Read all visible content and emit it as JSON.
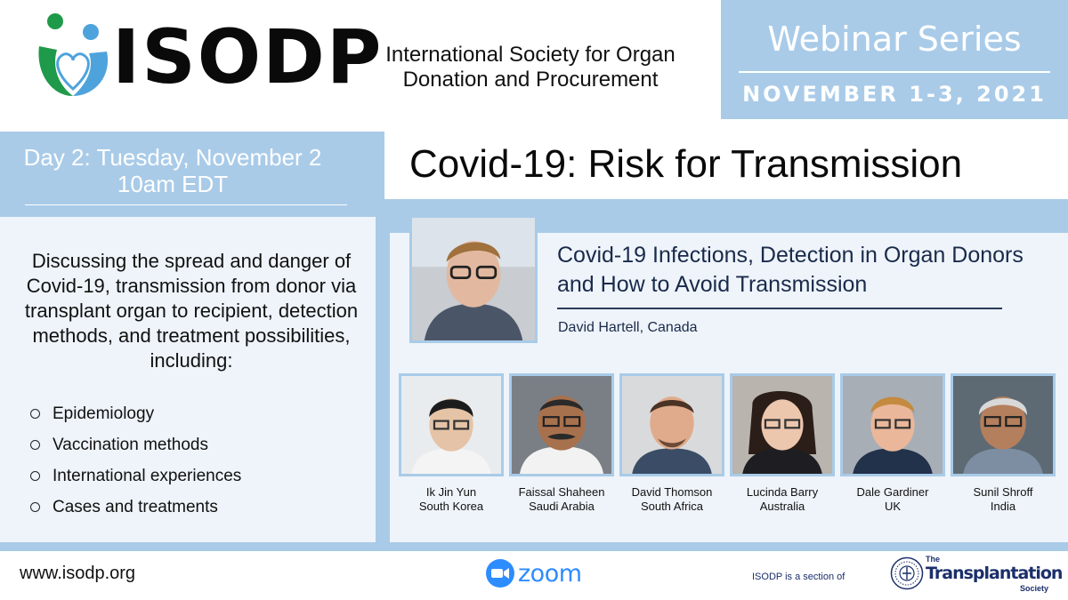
{
  "header": {
    "logo_text": "ISODP",
    "org_name_line1": "International Society for Organ",
    "org_name_line2": "Donation and Procurement",
    "series_title": "Webinar Series",
    "series_dates": "NOVEMBER 1-3, 2021"
  },
  "session": {
    "day_line1": "Day 2: Tuesday, November 2",
    "day_line2": "10am EDT",
    "title": "Covid-19: Risk for Transmission"
  },
  "description": {
    "intro": "Discussing the spread and danger of Covid-19, transmission from donor via transplant organ to recipient, detection methods, and treatment possibilities, including:",
    "topics": [
      "Epidemiology",
      "Vaccination methods",
      "International experiences",
      "Cases and treatments"
    ]
  },
  "keynote": {
    "talk_title": "Covid-19 Infections, Detection in Organ Donors and How to Avoid Transmission",
    "speaker": "David Hartell, Canada"
  },
  "panelists": [
    {
      "name": "Ik Jin Yun",
      "country": "South Korea"
    },
    {
      "name": "Faissal Shaheen",
      "country": "Saudi Arabia"
    },
    {
      "name": "David Thomson",
      "country": "South Africa"
    },
    {
      "name": "Lucinda Barry",
      "country": "Australia"
    },
    {
      "name": "Dale Gardiner",
      "country": "UK"
    },
    {
      "name": "Sunil Shroff",
      "country": "India"
    }
  ],
  "footer": {
    "website": "www.isodp.org",
    "zoom_label": "zoom",
    "section_text": "ISODP is a section of",
    "tts_the": "The",
    "tts_name": "Transplantation",
    "tts_society": "Society"
  },
  "colors": {
    "accent_blue": "#a9cbe8",
    "panel_bg": "#eef4fa",
    "logo_green": "#1f9a4a",
    "logo_blue": "#4ea3dc",
    "zoom_blue": "#2d8cff",
    "tts_navy": "#1b2f6a"
  },
  "icons": {
    "logo": "isodp-figures-heart-logo",
    "zoom": "zoom-camera-icon",
    "seal": "transplantation-society-seal-icon",
    "bullet": "hollow-circle-bullet"
  }
}
